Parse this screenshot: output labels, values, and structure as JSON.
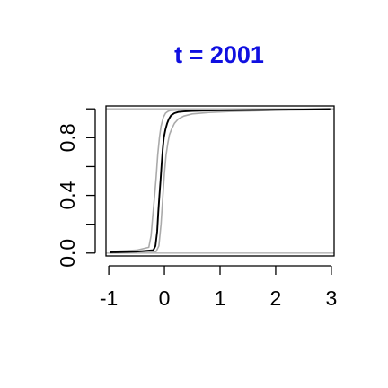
{
  "colors": {
    "title": "#1010e0",
    "main_line": "#000000",
    "band_line": "#aaaaaa",
    "reference_line": "#bdbdbd",
    "axis": "#000000"
  },
  "chart_data": {
    "type": "line",
    "title": "t = 2001",
    "xlabel": "",
    "ylabel": "",
    "xlim": [
      -1.05,
      3.05
    ],
    "ylim": [
      -0.02,
      1.02
    ],
    "x_ticks": [
      -1,
      0,
      1,
      2,
      3
    ],
    "x_tick_labels": [
      "-1",
      "0",
      "1",
      "2",
      "3"
    ],
    "y_ticks": [
      0.0,
      0.2,
      0.4,
      0.6,
      0.8,
      1.0
    ],
    "y_tick_labels": [
      "0.0",
      "",
      "0.4",
      "",
      "0.8",
      ""
    ],
    "grid": false,
    "legend": "none",
    "reference_lines": [
      0,
      1
    ],
    "series": [
      {
        "role": "estimate",
        "x": [
          -0.98,
          -0.5,
          -0.2,
          -0.16,
          -0.13,
          -0.11,
          -0.09,
          -0.07,
          -0.05,
          -0.03,
          -0.01,
          0.02,
          0.05,
          0.08,
          0.12,
          0.18,
          0.25,
          0.35,
          0.5,
          0.8,
          1.2,
          1.6,
          2.0,
          2.5,
          2.98
        ],
        "values": [
          0.005,
          0.01,
          0.02,
          0.05,
          0.15,
          0.28,
          0.4,
          0.5,
          0.62,
          0.72,
          0.8,
          0.86,
          0.9,
          0.93,
          0.955,
          0.97,
          0.978,
          0.982,
          0.986,
          0.988,
          0.99,
          0.992,
          0.994,
          0.996,
          0.998
        ]
      },
      {
        "role": "upper-band",
        "x": [
          -0.98,
          -0.5,
          -0.28,
          -0.24,
          -0.21,
          -0.18,
          -0.15,
          -0.12,
          -0.09,
          -0.06,
          -0.02,
          0.02,
          0.06,
          0.1,
          0.18,
          0.3,
          0.5,
          0.9,
          1.5,
          2.2,
          2.98
        ],
        "values": [
          0.01,
          0.02,
          0.04,
          0.12,
          0.25,
          0.38,
          0.52,
          0.68,
          0.8,
          0.88,
          0.94,
          0.97,
          0.982,
          0.988,
          0.991,
          0.993,
          0.994,
          0.995,
          0.996,
          0.997,
          0.998
        ]
      },
      {
        "role": "lower-band",
        "x": [
          -0.98,
          -0.5,
          -0.15,
          -0.1,
          -0.06,
          -0.03,
          0.0,
          0.03,
          0.06,
          0.09,
          0.13,
          0.18,
          0.25,
          0.35,
          0.5,
          0.8,
          1.2,
          2.0,
          2.98
        ],
        "values": [
          0.0,
          0.005,
          0.01,
          0.05,
          0.2,
          0.38,
          0.55,
          0.68,
          0.76,
          0.82,
          0.86,
          0.9,
          0.93,
          0.95,
          0.965,
          0.975,
          0.982,
          0.99,
          0.996
        ]
      }
    ]
  }
}
